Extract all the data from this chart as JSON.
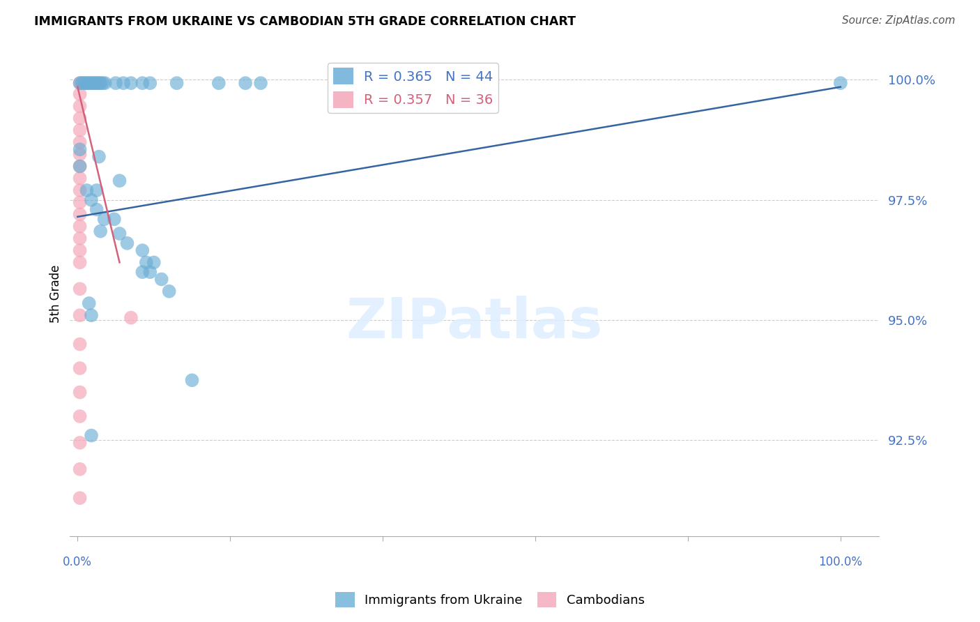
{
  "title": "IMMIGRANTS FROM UKRAINE VS CAMBODIAN 5TH GRADE CORRELATION CHART",
  "source": "Source: ZipAtlas.com",
  "ylabel": "5th Grade",
  "watermark": "ZIPatlas",
  "blue_color": "#6baed6",
  "pink_color": "#f4a7b9",
  "blue_line_color": "#3565a0",
  "pink_line_color": "#d4607a",
  "y_lim": [
    0.905,
    1.006
  ],
  "x_lim": [
    -0.01,
    1.05
  ],
  "y_ticks": [
    0.925,
    0.95,
    0.975,
    1.0
  ],
  "y_tick_labels": [
    "92.5%",
    "95.0%",
    "97.5%",
    "100.0%"
  ],
  "blue_trend_x": [
    0.0,
    1.0
  ],
  "blue_trend_y": [
    0.9715,
    0.9985
  ],
  "pink_trend_x": [
    0.0,
    0.055
  ],
  "pink_trend_y": [
    0.9985,
    0.962
  ],
  "blue_scatter": [
    [
      0.003,
      0.9993
    ],
    [
      0.006,
      0.9993
    ],
    [
      0.009,
      0.9993
    ],
    [
      0.012,
      0.9993
    ],
    [
      0.015,
      0.9993
    ],
    [
      0.018,
      0.9993
    ],
    [
      0.021,
      0.9993
    ],
    [
      0.024,
      0.9993
    ],
    [
      0.027,
      0.9993
    ],
    [
      0.03,
      0.9993
    ],
    [
      0.033,
      0.9993
    ],
    [
      0.036,
      0.9993
    ],
    [
      0.05,
      0.9993
    ],
    [
      0.06,
      0.9993
    ],
    [
      0.07,
      0.9993
    ],
    [
      0.085,
      0.9993
    ],
    [
      0.095,
      0.9993
    ],
    [
      0.13,
      0.9993
    ],
    [
      0.185,
      0.9993
    ],
    [
      0.22,
      0.9993
    ],
    [
      0.24,
      0.9993
    ],
    [
      0.003,
      0.9855
    ],
    [
      0.003,
      0.982
    ],
    [
      0.028,
      0.984
    ],
    [
      0.055,
      0.979
    ],
    [
      0.012,
      0.977
    ],
    [
      0.025,
      0.977
    ],
    [
      0.018,
      0.975
    ],
    [
      0.025,
      0.973
    ],
    [
      0.035,
      0.971
    ],
    [
      0.048,
      0.971
    ],
    [
      0.03,
      0.9685
    ],
    [
      0.055,
      0.968
    ],
    [
      0.065,
      0.966
    ],
    [
      0.085,
      0.9645
    ],
    [
      0.09,
      0.962
    ],
    [
      0.1,
      0.962
    ],
    [
      0.085,
      0.96
    ],
    [
      0.095,
      0.96
    ],
    [
      0.11,
      0.9585
    ],
    [
      0.12,
      0.956
    ],
    [
      0.015,
      0.9535
    ],
    [
      0.018,
      0.951
    ],
    [
      0.15,
      0.9375
    ],
    [
      0.018,
      0.926
    ],
    [
      1.0,
      0.9993
    ]
  ],
  "pink_scatter": [
    [
      0.003,
      0.9993
    ],
    [
      0.006,
      0.9993
    ],
    [
      0.009,
      0.9993
    ],
    [
      0.012,
      0.9993
    ],
    [
      0.015,
      0.9993
    ],
    [
      0.018,
      0.9993
    ],
    [
      0.021,
      0.9993
    ],
    [
      0.024,
      0.9993
    ],
    [
      0.027,
      0.9993
    ],
    [
      0.03,
      0.9993
    ],
    [
      0.003,
      0.997
    ],
    [
      0.003,
      0.9945
    ],
    [
      0.003,
      0.992
    ],
    [
      0.003,
      0.9895
    ],
    [
      0.003,
      0.987
    ],
    [
      0.003,
      0.9845
    ],
    [
      0.003,
      0.982
    ],
    [
      0.003,
      0.9795
    ],
    [
      0.003,
      0.977
    ],
    [
      0.003,
      0.9745
    ],
    [
      0.003,
      0.972
    ],
    [
      0.003,
      0.9695
    ],
    [
      0.003,
      0.967
    ],
    [
      0.003,
      0.9645
    ],
    [
      0.003,
      0.962
    ],
    [
      0.003,
      0.9565
    ],
    [
      0.003,
      0.951
    ],
    [
      0.07,
      0.9505
    ],
    [
      0.003,
      0.945
    ],
    [
      0.003,
      0.94
    ],
    [
      0.003,
      0.935
    ],
    [
      0.003,
      0.93
    ],
    [
      0.003,
      0.9245
    ],
    [
      0.003,
      0.919
    ],
    [
      0.003,
      0.913
    ]
  ]
}
